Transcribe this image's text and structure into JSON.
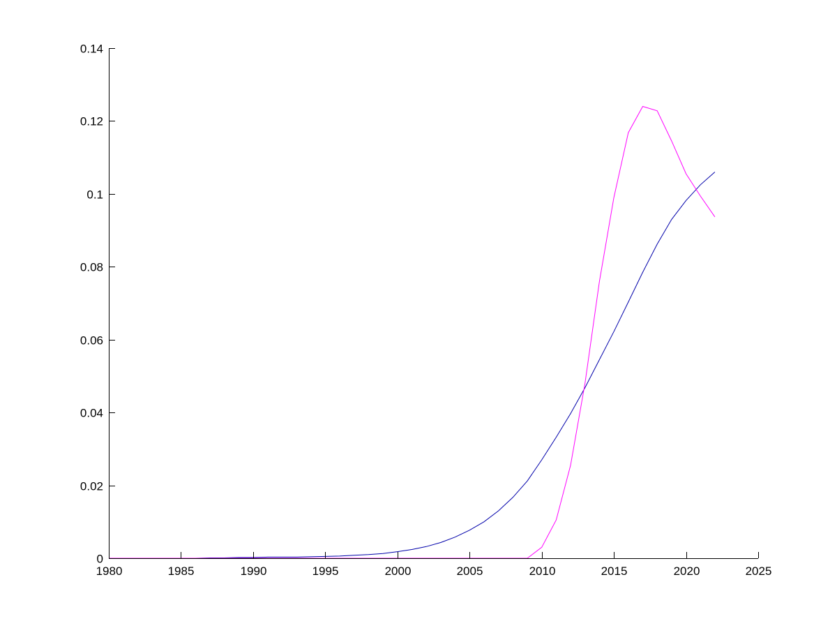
{
  "chart_data": {
    "type": "line",
    "title": "",
    "xlabel": "",
    "ylabel": "",
    "xlim": [
      1980,
      2025
    ],
    "ylim": [
      0,
      0.14
    ],
    "xticks": [
      "1980",
      "1985",
      "1990",
      "1995",
      "2000",
      "2005",
      "2010",
      "2015",
      "2020",
      "2025"
    ],
    "yticks": [
      "0",
      "0.02",
      "0.04",
      "0.06",
      "0.08",
      "0.1",
      "0.12",
      "0.14"
    ],
    "grid": false,
    "legend": "none",
    "x": [
      1980,
      1981,
      1982,
      1983,
      1984,
      1985,
      1986,
      1987,
      1988,
      1989,
      1990,
      1991,
      1992,
      1993,
      1994,
      1995,
      1996,
      1997,
      1998,
      1999,
      2000,
      2001,
      2002,
      2003,
      2004,
      2005,
      2006,
      2007,
      2008,
      2009,
      2010,
      2011,
      2012,
      2013,
      2014,
      2015,
      2016,
      2017,
      2018,
      2019,
      2020,
      2021,
      2022
    ],
    "series": [
      {
        "color": "#0000aa",
        "values": [
          0,
          0,
          0,
          0,
          0,
          0,
          0,
          0.0001,
          0.0001,
          0.0002,
          0.0002,
          0.0003,
          0.0003,
          0.0003,
          0.0004,
          0.0005,
          0.0006,
          0.0008,
          0.001,
          0.0013,
          0.0018,
          0.0024,
          0.0032,
          0.0043,
          0.0058,
          0.0077,
          0.01,
          0.013,
          0.0167,
          0.0212,
          0.027,
          0.0332,
          0.0397,
          0.0468,
          0.0545,
          0.0622,
          0.0703,
          0.0785,
          0.0862,
          0.093,
          0.0982,
          0.1025,
          0.106
        ]
      },
      {
        "color": "#ff00ff",
        "values": [
          0,
          0,
          0,
          0,
          0,
          0,
          0,
          0,
          0,
          0,
          0,
          0,
          0,
          0,
          0,
          0,
          0,
          0,
          0,
          0,
          0,
          0,
          0,
          0,
          0,
          0,
          0,
          0,
          0,
          0,
          0.003,
          0.0105,
          0.0255,
          0.048,
          0.076,
          0.099,
          0.1168,
          0.124,
          0.1228,
          0.1145,
          0.1055,
          0.0994,
          0.0937
        ]
      }
    ]
  }
}
